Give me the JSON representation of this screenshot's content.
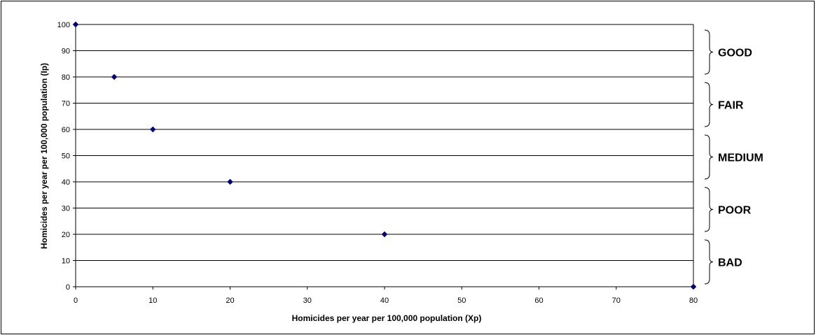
{
  "chart_data": {
    "type": "scatter",
    "xlabel": "Homicides per year per 100,000 population (Xp)",
    "ylabel": "Homicides per year per 100,000 population (Ip)",
    "xlim": [
      0,
      80
    ],
    "ylim": [
      0,
      100
    ],
    "xticks": [
      "0",
      "10",
      "20",
      "30",
      "40",
      "50",
      "60",
      "70",
      "80"
    ],
    "yticks": [
      "0",
      "10",
      "20",
      "30",
      "40",
      "50",
      "60",
      "70",
      "80",
      "90",
      "100"
    ],
    "grid": "horizontal",
    "marker": "diamond",
    "marker_color": "#000080",
    "series": [
      {
        "x": [
          0,
          5,
          10,
          20,
          40,
          80
        ],
        "y": [
          100,
          80,
          60,
          40,
          20,
          0
        ]
      }
    ],
    "bands": [
      {
        "label": "GOOD",
        "from": 80,
        "to": 100
      },
      {
        "label": "FAIR",
        "from": 60,
        "to": 80
      },
      {
        "label": "MEDIUM",
        "from": 40,
        "to": 60
      },
      {
        "label": "POOR",
        "from": 20,
        "to": 40
      },
      {
        "label": "BAD",
        "from": 0,
        "to": 20
      }
    ]
  }
}
